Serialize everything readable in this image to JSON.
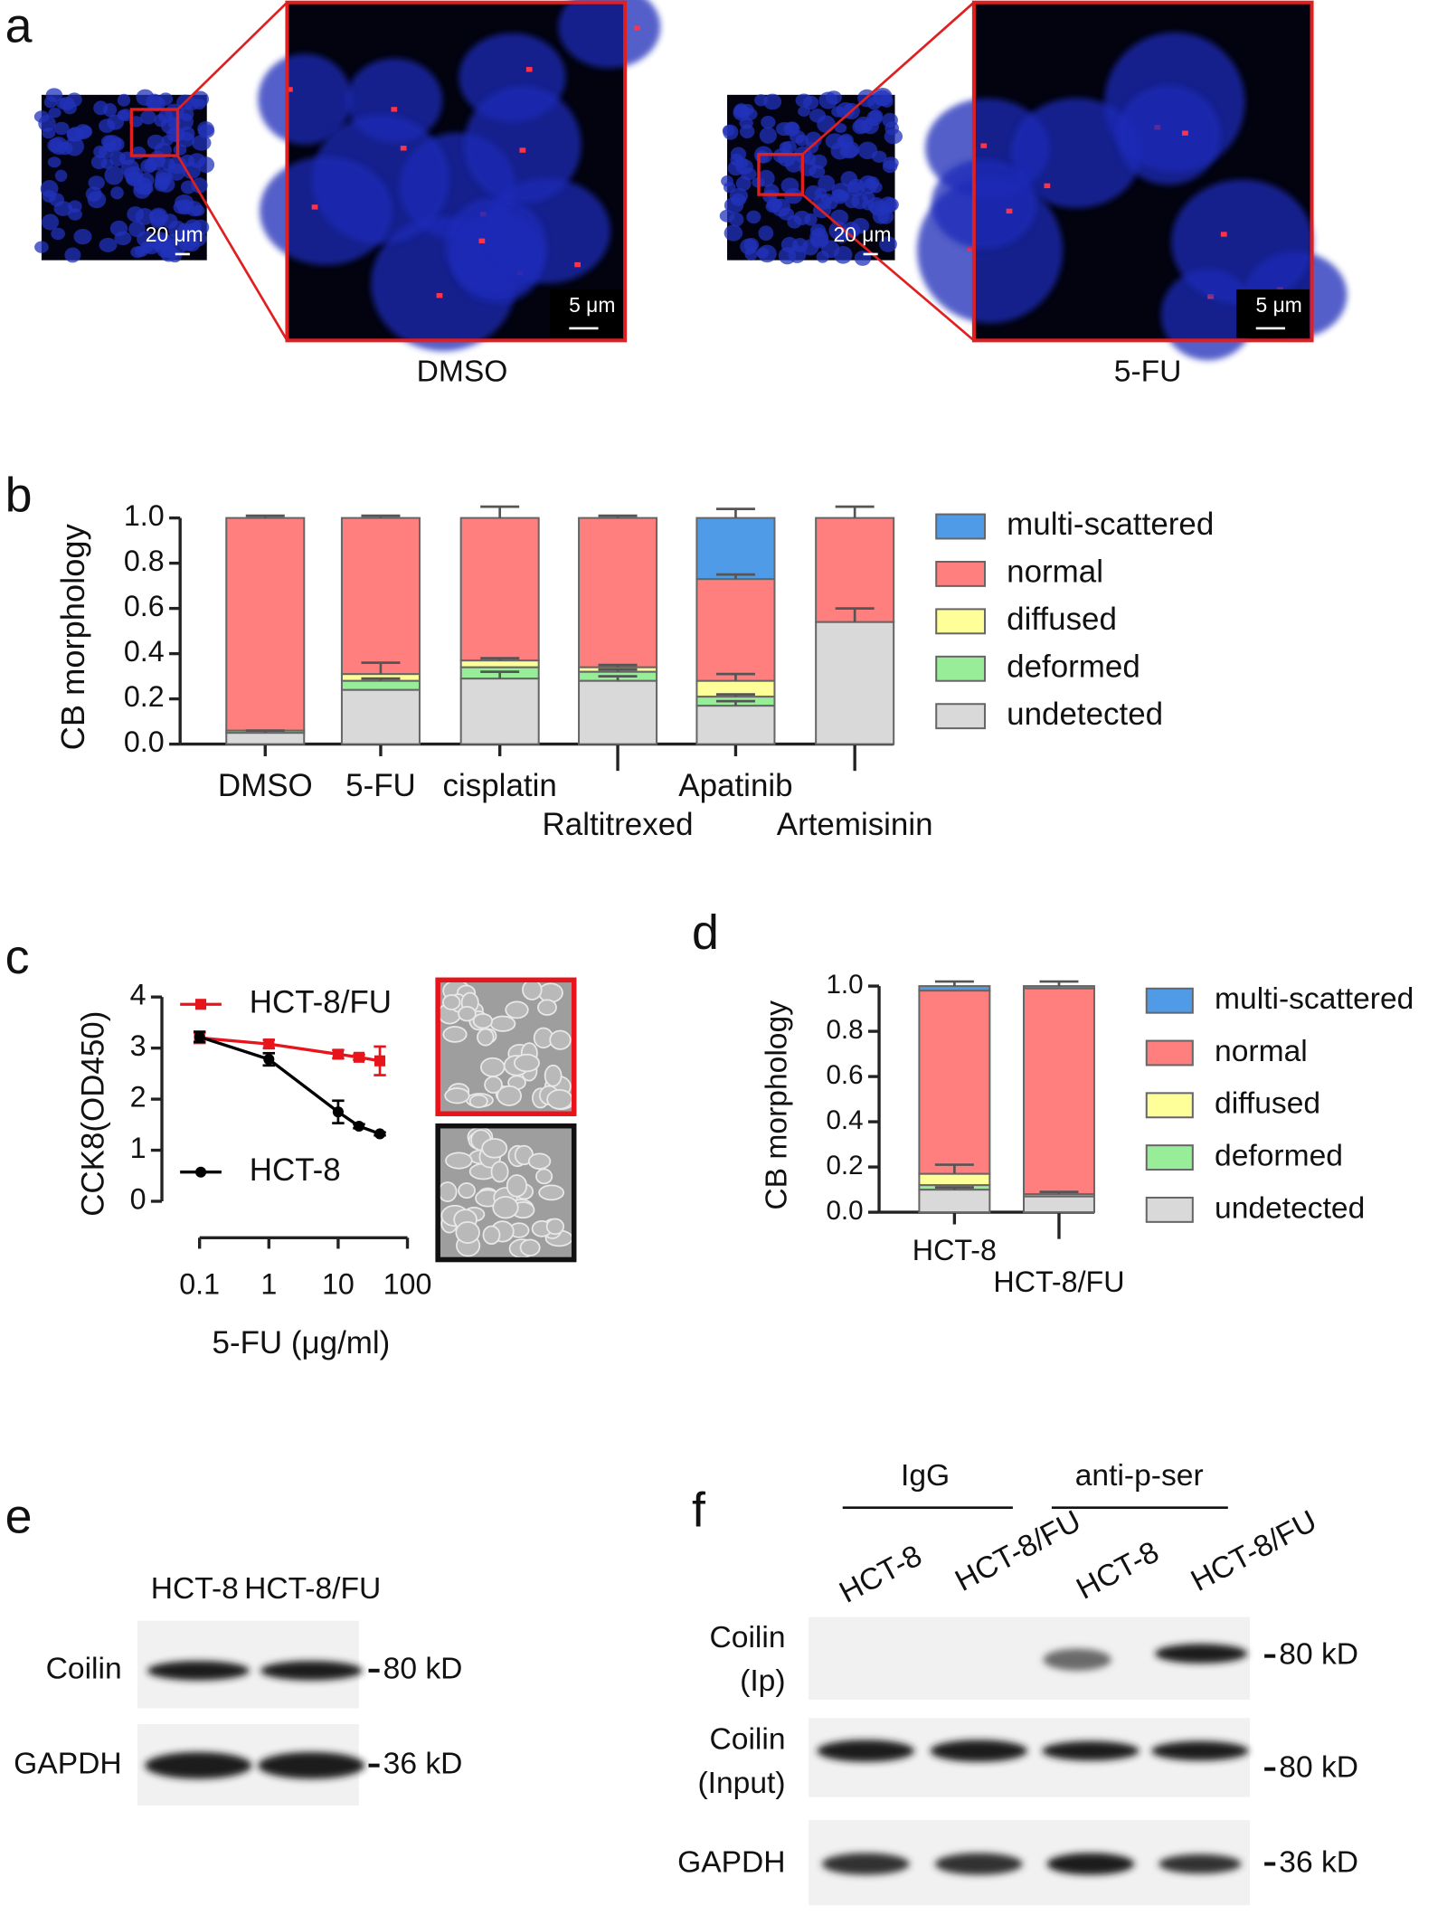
{
  "panel_a": {
    "label": "a",
    "images": [
      {
        "caption": "DMSO",
        "scale_overview": "20 μm",
        "scale_zoom": "5 μm"
      },
      {
        "caption": "5-FU",
        "scale_overview": "20 μm",
        "scale_zoom": "5 μm"
      }
    ]
  },
  "chart_data": [
    {
      "type": "bar",
      "stacked": true,
      "panel": "b",
      "ylabel": "CB morphology",
      "categories": [
        "DMSO",
        "5-FU",
        "cisplatin",
        "Raltitrexed",
        "Apatinib",
        "Artemisinin"
      ],
      "series": [
        {
          "name": "undetected",
          "color": "#d9d9d9",
          "values": [
            0.05,
            0.24,
            0.29,
            0.28,
            0.17,
            0.54
          ],
          "errors": [
            0.01,
            null,
            0.03,
            0.02,
            0.02,
            0.06
          ]
        },
        {
          "name": "deformed",
          "color": "#98ee98",
          "values": [
            0.01,
            0.04,
            0.05,
            0.04,
            0.04,
            0
          ],
          "errors": [
            null,
            0.01,
            null,
            0.01,
            0.01,
            null
          ]
        },
        {
          "name": "diffused",
          "color": "#ffff99",
          "values": [
            0,
            0.03,
            0.03,
            0.02,
            0.07,
            0
          ],
          "errors": [
            null,
            0.05,
            0.01,
            0.01,
            0.03,
            null
          ]
        },
        {
          "name": "normal",
          "color": "#ff7f7f",
          "values": [
            0.94,
            0.69,
            0.63,
            0.66,
            0.45,
            0.46
          ],
          "errors": [
            0.01,
            0.01,
            0.05,
            0.01,
            0.02,
            0.05
          ]
        },
        {
          "name": "multi-scattered",
          "color": "#4f9be8",
          "values": [
            0,
            0,
            0,
            0,
            0.27,
            0
          ],
          "errors": [
            null,
            null,
            null,
            null,
            0.04,
            null
          ]
        }
      ],
      "ylim": [
        0,
        1.0
      ],
      "yticks": [
        {
          "value": 0,
          "label": "0.0"
        },
        0.2,
        0.4,
        0.6,
        0.8,
        {
          "value": 1,
          "label": "1.0"
        }
      ]
    },
    {
      "type": "line",
      "panel": "c",
      "xscale": "log",
      "xlabel": "5-FU (μg/ml)",
      "ylabel": "CCK8(OD450)",
      "x": [
        0.1,
        1,
        10,
        20,
        40
      ],
      "series": [
        {
          "name": "HCT-8/FU",
          "color": "#e8141c",
          "marker": "square",
          "values": [
            3.2,
            3.08,
            2.88,
            2.82,
            2.75
          ],
          "errors": [
            0.1,
            0.08,
            0.08,
            0.05,
            0.28
          ]
        },
        {
          "name": "HCT-8",
          "color": "#000000",
          "marker": "circle",
          "values": [
            3.22,
            2.78,
            1.75,
            1.47,
            1.32
          ],
          "errors": [
            0.1,
            0.12,
            0.22,
            0.04,
            0.03
          ]
        }
      ],
      "xlim": [
        0.1,
        100
      ],
      "xticks": [
        0.1,
        1,
        10,
        100
      ],
      "ylim": [
        0,
        4
      ],
      "yticks": [
        0,
        1,
        2,
        3,
        4
      ]
    },
    {
      "type": "bar",
      "stacked": true,
      "panel": "d",
      "ylabel": "CB morphology",
      "categories": [
        "HCT-8",
        "HCT-8/FU"
      ],
      "series": [
        {
          "name": "undetected",
          "color": "#d9d9d9",
          "values": [
            0.1,
            0.07
          ],
          "errors": [
            0.01,
            null
          ]
        },
        {
          "name": "deformed",
          "color": "#98ee98",
          "values": [
            0.02,
            0.01
          ],
          "errors": [
            null,
            0.01
          ]
        },
        {
          "name": "diffused",
          "color": "#ffff99",
          "values": [
            0.05,
            0
          ],
          "errors": [
            0.04,
            null
          ]
        },
        {
          "name": "normal",
          "color": "#ff7f7f",
          "values": [
            0.81,
            0.91
          ],
          "errors": [
            null,
            null
          ]
        },
        {
          "name": "multi-scattered",
          "color": "#4f9be8",
          "values": [
            0.02,
            0.01
          ],
          "errors": [
            0.02,
            0.02
          ]
        }
      ],
      "ylim": [
        0,
        1.0
      ],
      "yticks": [
        {
          "value": 0,
          "label": "0.0"
        },
        0.2,
        0.4,
        0.6,
        0.8,
        {
          "value": 1,
          "label": "1.0"
        }
      ]
    }
  ],
  "panel_e": {
    "label": "e",
    "lanes": [
      "HCT-8",
      "HCT-8/FU"
    ],
    "rows": [
      {
        "name": "Coilin",
        "marker": "80 kD"
      },
      {
        "name": "GAPDH",
        "marker": "36 kD"
      }
    ]
  },
  "panel_f": {
    "label": "f",
    "groups": [
      "IgG",
      "anti-p-ser"
    ],
    "lanes": [
      "HCT-8",
      "HCT-8/FU",
      "HCT-8",
      "HCT-8/FU"
    ],
    "rows": [
      {
        "lines": [
          "Coilin",
          "(Ip)"
        ],
        "marker": "80 kD"
      },
      {
        "lines": [
          "Coilin",
          "(Input)"
        ],
        "marker": "80 kD"
      },
      {
        "lines": [
          "GAPDH"
        ],
        "marker": "36 kD"
      }
    ]
  }
}
